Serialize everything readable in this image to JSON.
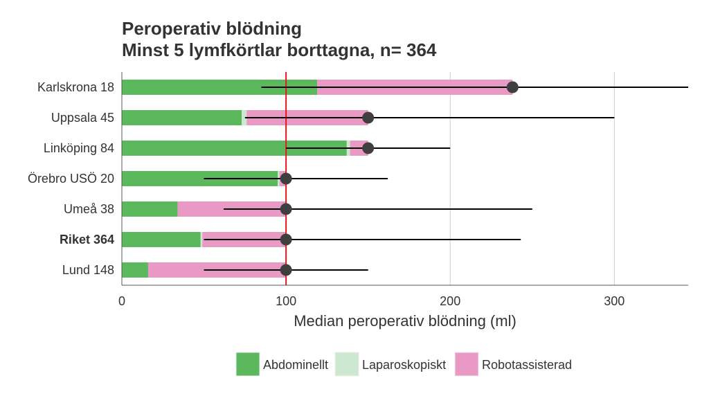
{
  "chart_data": {
    "type": "bar",
    "orientation": "horizontal",
    "stacked": true,
    "title": "Peroperativ blödning",
    "subtitle": "Minst 5 lymfkörtlar borttagna, n= 364",
    "xlabel": "Median peroperativ blödning (ml)",
    "xlim": [
      0,
      345
    ],
    "xticks": [
      0,
      100,
      200,
      300
    ],
    "grid": true,
    "reference_line": {
      "x": 100,
      "color": "#e41a1c"
    },
    "colors": {
      "Abdominellt": "#5cb85c",
      "Laparoskopiskt": "#cde8d0",
      "Robotassisterad": "#e899c4"
    },
    "series": [
      {
        "name": "Abdominellt",
        "values": [
          119,
          73,
          137,
          95,
          34,
          48,
          16
        ]
      },
      {
        "name": "Laparoskopiskt",
        "values": [
          0,
          3,
          2,
          1,
          0,
          1,
          0
        ]
      },
      {
        "name": "Robotassisterad",
        "values": [
          119,
          74,
          11,
          4,
          66,
          51,
          84
        ]
      }
    ],
    "categories": [
      "Karlskrona 18",
      "Uppsala 45",
      "Linköping 84",
      "Örebro USÖ 20",
      "Umeå 38",
      "Riket 364",
      "Lund 148"
    ],
    "bold_categories": [
      "Riket 364"
    ],
    "medians": [
      238,
      150,
      150,
      100,
      100,
      100,
      100
    ],
    "ci_low": [
      85,
      75,
      100,
      50,
      62,
      50,
      50
    ],
    "ci_high": [
      345,
      300,
      200,
      162,
      250,
      243,
      150
    ],
    "legend": {
      "position": "bottom",
      "entries": [
        "Abdominellt",
        "Laparoskopiskt",
        "Robotassisterad"
      ]
    }
  }
}
